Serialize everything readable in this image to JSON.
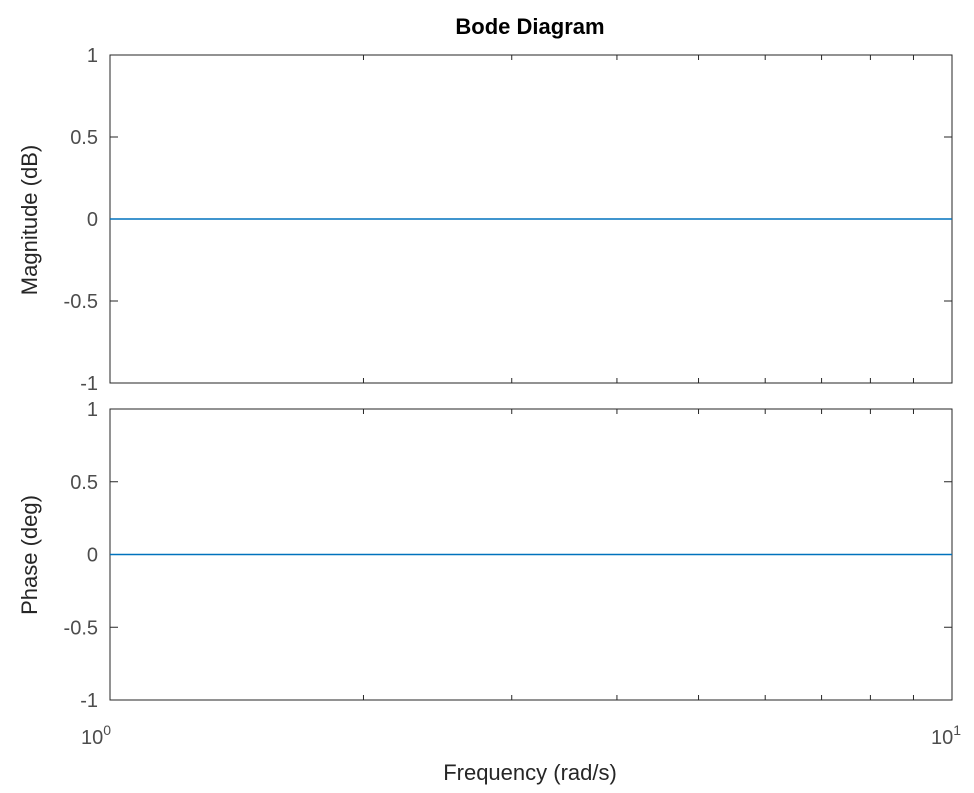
{
  "chart_data": {
    "type": "line",
    "title": "Bode Diagram",
    "xlabel": "Frequency  (rad/s)",
    "x_scale": "log",
    "xlim": [
      1,
      10
    ],
    "x_tick_labels": [
      {
        "base": "10",
        "exp": "0"
      },
      {
        "base": "10",
        "exp": "1"
      }
    ],
    "grid": false,
    "line_color": "#0072bd",
    "axes_color": "#262626",
    "tick_label_color": "#4d4d4d",
    "panels": [
      {
        "name": "magnitude",
        "ylabel": "Magnitude (dB)",
        "ylim": [
          -1,
          1
        ],
        "yticks": [
          1,
          0.5,
          0,
          -0.5,
          -1
        ],
        "ytick_labels": [
          "1",
          "0.5",
          "0",
          "-0.5",
          "-1"
        ],
        "series": [
          {
            "x": [
              1,
              10
            ],
            "y": [
              0,
              0
            ]
          }
        ]
      },
      {
        "name": "phase",
        "ylabel": "Phase (deg)",
        "ylim": [
          -1,
          1
        ],
        "yticks": [
          1,
          0.5,
          0,
          -0.5,
          -1
        ],
        "ytick_labels": [
          "1",
          "0.5",
          "0",
          "-0.5",
          "-1"
        ],
        "series": [
          {
            "x": [
              1,
              10
            ],
            "y": [
              0,
              0
            ]
          }
        ]
      }
    ]
  }
}
